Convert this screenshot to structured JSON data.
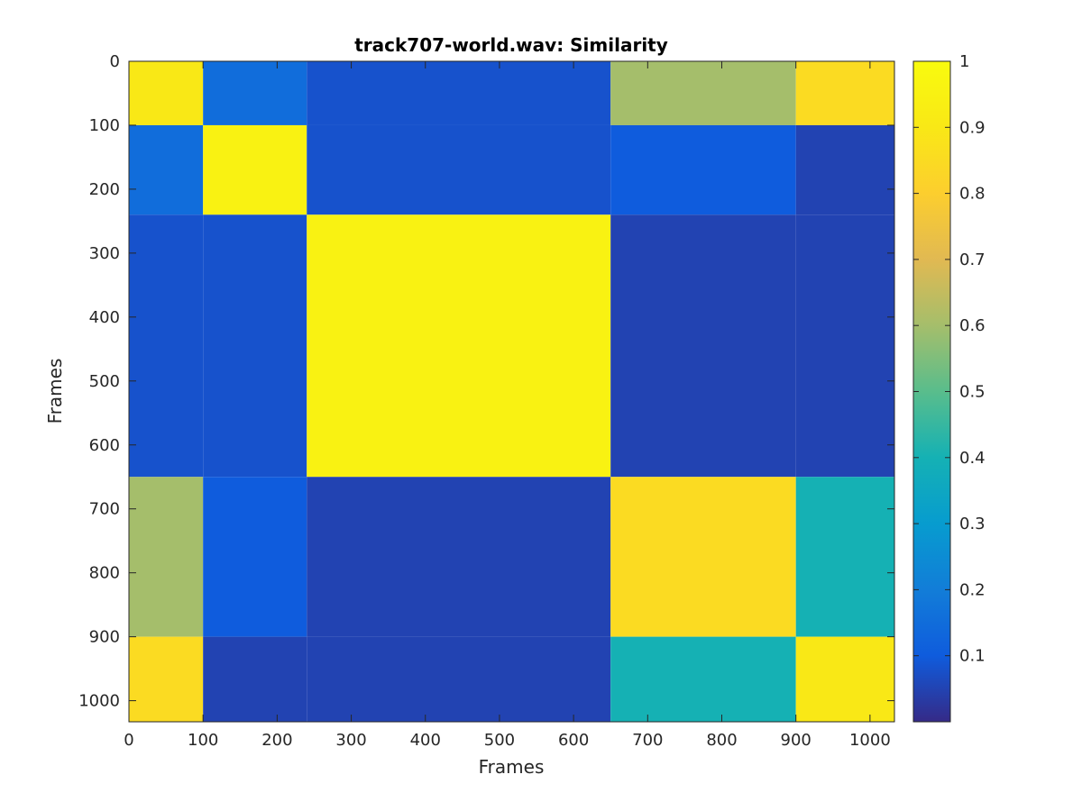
{
  "chart_data": {
    "type": "heatmap",
    "title": "track707-world.wav: Similarity",
    "xlabel": "Frames",
    "ylabel": "Frames",
    "xlim": [
      0,
      1033
    ],
    "ylim": [
      0,
      1033
    ],
    "y_direction": "reversed",
    "x_ticks": [
      0,
      100,
      200,
      300,
      400,
      500,
      600,
      700,
      800,
      900,
      1000
    ],
    "y_ticks": [
      0,
      100,
      200,
      300,
      400,
      500,
      600,
      700,
      800,
      900,
      1000
    ],
    "colormap": "parula",
    "colorbar": {
      "range": [
        0,
        1
      ],
      "ticks": [
        0.1,
        0.2,
        0.3,
        0.4,
        0.5,
        0.6,
        0.7,
        0.8,
        0.9,
        1
      ],
      "tick_labels": [
        "0.1",
        "0.2",
        "0.3",
        "0.4",
        "0.5",
        "0.6",
        "0.7",
        "0.8",
        "0.9",
        "1"
      ]
    },
    "segments": [
      {
        "start": 0,
        "end": 100
      },
      {
        "start": 100,
        "end": 240
      },
      {
        "start": 240,
        "end": 650
      },
      {
        "start": 650,
        "end": 900
      },
      {
        "start": 900,
        "end": 1033
      }
    ],
    "segment_similarity": [
      [
        0.9,
        0.15,
        0.08,
        0.6,
        0.85
      ],
      [
        0.15,
        0.95,
        0.08,
        0.1,
        0.05
      ],
      [
        0.08,
        0.08,
        0.95,
        0.05,
        0.05
      ],
      [
        0.6,
        0.1,
        0.05,
        0.85,
        0.4
      ],
      [
        0.85,
        0.05,
        0.05,
        0.4,
        0.9
      ]
    ],
    "grid": false,
    "legend": "none"
  }
}
